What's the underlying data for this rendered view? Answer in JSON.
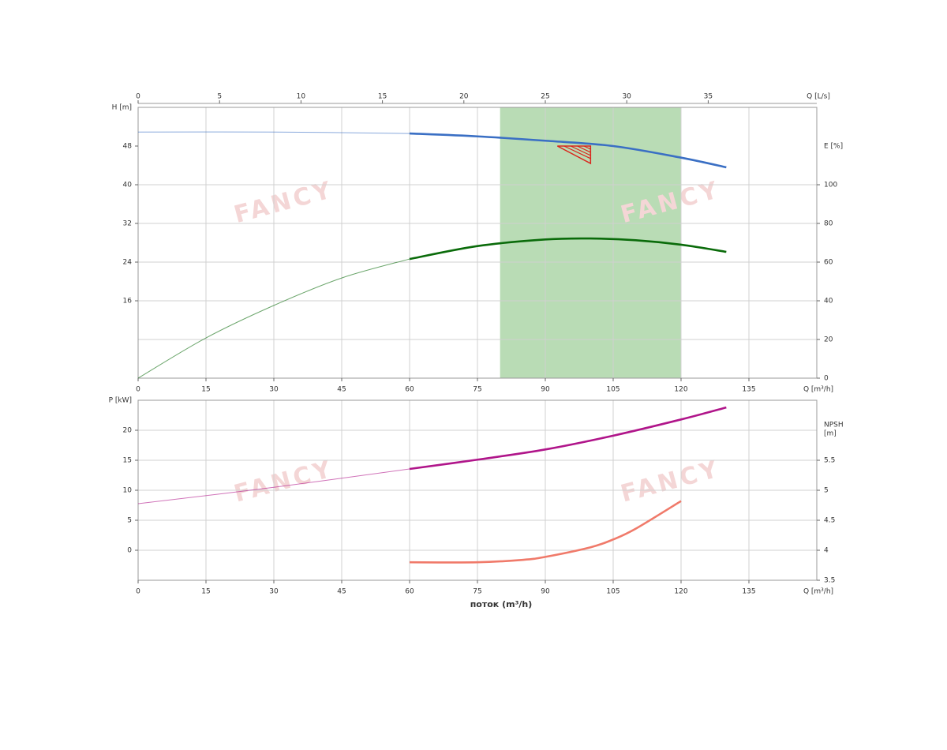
{
  "chart_data": [
    {
      "type": "line",
      "xlabel": "Q [m³/h]",
      "xlim": [
        0,
        150
      ],
      "xticks": [
        0,
        15,
        30,
        45,
        60,
        75,
        90,
        105,
        120,
        135
      ],
      "x2label": "Q [L/s]",
      "x2lim": [
        0,
        41.667
      ],
      "x2ticks": [
        0,
        5,
        10,
        15,
        20,
        25,
        30,
        35
      ],
      "ylabel": "H [m]",
      "ylim": [
        0,
        56
      ],
      "yticks": [
        16,
        24,
        32,
        40,
        48
      ],
      "ycolor": "#3a6fc4",
      "y2label": "E [%]",
      "y2lim": [
        0,
        140
      ],
      "y2ticks": [
        0,
        20,
        40,
        60,
        80,
        100
      ],
      "y2color": "#0a6b0a",
      "grid": true,
      "grid_axis": "y2",
      "band": [
        80,
        120
      ],
      "band_color": "#b9dcb5",
      "operating_point": {
        "x": 100,
        "y": 48,
        "color": "#d9261c"
      },
      "emphasis_from": 60,
      "watermark": "FANCY",
      "series": [
        {
          "color": "#3a6fc4",
          "axis": "y",
          "x": [
            0,
            30,
            60,
            75,
            90,
            105,
            120,
            130
          ],
          "values": [
            50.9,
            50.9,
            50.6,
            50.0,
            49.1,
            48.0,
            45.6,
            43.6
          ]
        },
        {
          "color": "#0a6b0a",
          "axis": "y2",
          "x": [
            0,
            15,
            30,
            45,
            60,
            75,
            90,
            100,
            110,
            120,
            130
          ],
          "values": [
            0,
            20.8,
            37.6,
            51.8,
            61.6,
            68.3,
            71.7,
            72.2,
            71.3,
            69,
            65.3
          ]
        }
      ]
    },
    {
      "type": "line",
      "xlabel": "Q [m³/h]",
      "xtitle": "поток (m³/h)",
      "xlim": [
        0,
        150
      ],
      "xticks": [
        0,
        15,
        30,
        45,
        60,
        75,
        90,
        105,
        120,
        135
      ],
      "ylabel": "P [kW]",
      "ylim": [
        -5,
        25
      ],
      "yticks": [
        0,
        5,
        10,
        15,
        20
      ],
      "ycolor": "#b0158a",
      "y2label": [
        "NPSH",
        "[m]"
      ],
      "y2lim": [
        3.5,
        6.5
      ],
      "y2ticks": [
        3.5,
        4,
        4.5,
        5,
        5.5
      ],
      "y2color": "#f07a6a",
      "grid": true,
      "grid_axis": "y",
      "emphasis_from": 60,
      "watermark": "FANCY",
      "series": [
        {
          "color": "#b0158a",
          "axis": "y",
          "x": [
            0,
            30,
            60,
            75,
            90,
            105,
            120,
            130
          ],
          "values": [
            7.76,
            10.5,
            13.55,
            15.1,
            16.8,
            19.1,
            21.8,
            23.8
          ]
        },
        {
          "color": "#f07a6a",
          "axis": "y2",
          "x": [
            60,
            75,
            85,
            90,
            100,
            105,
            110,
            120
          ],
          "values": [
            3.8,
            3.8,
            3.84,
            3.89,
            4.05,
            4.18,
            4.36,
            4.82
          ]
        }
      ]
    }
  ]
}
